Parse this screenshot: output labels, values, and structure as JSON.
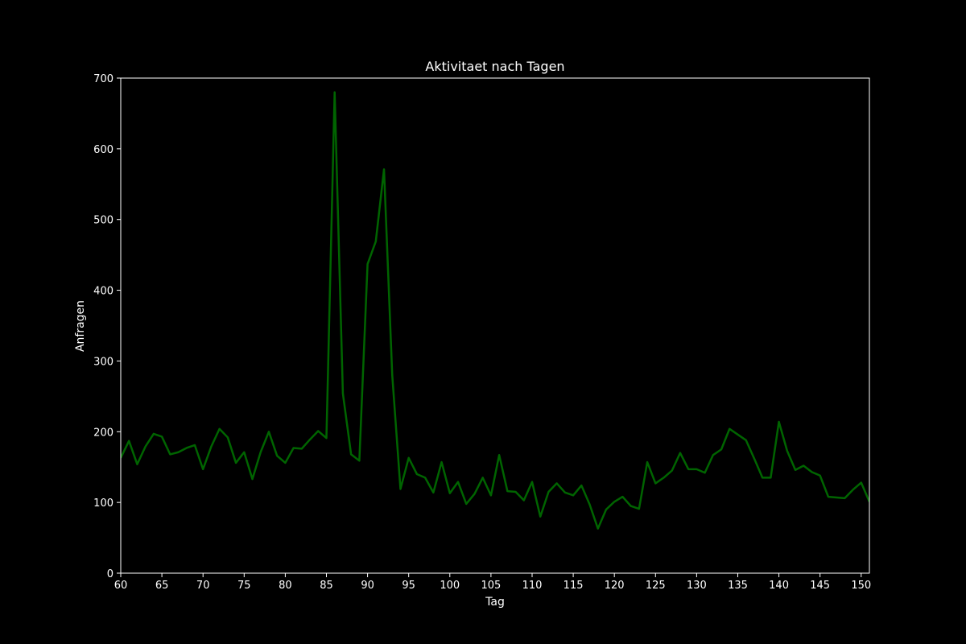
{
  "chart_data": {
    "type": "line",
    "title": "Aktivitaet nach Tagen",
    "xlabel": "Tag",
    "ylabel": "Anfragen",
    "xlim": [
      60,
      151
    ],
    "ylim": [
      0,
      700
    ],
    "xticks": [
      60,
      65,
      70,
      75,
      80,
      85,
      90,
      95,
      100,
      105,
      110,
      115,
      120,
      125,
      130,
      135,
      140,
      145,
      150
    ],
    "yticks": [
      0,
      100,
      200,
      300,
      400,
      500,
      600,
      700
    ],
    "grid": false,
    "legend": "none",
    "colors": {
      "background": "#000000",
      "axes": "#ffffff",
      "text": "#ffffff",
      "line": "#006400"
    },
    "series": [
      {
        "x": [
          60,
          61,
          62,
          63,
          64,
          65,
          66,
          67,
          68,
          69,
          70,
          71,
          72,
          73,
          74,
          75,
          76,
          77,
          78,
          79,
          80,
          81,
          82,
          83,
          84,
          85,
          86,
          87,
          88,
          89,
          90,
          91,
          92,
          93,
          94,
          95,
          96,
          97,
          98,
          99,
          100,
          101,
          102,
          103,
          104,
          105,
          106,
          107,
          108,
          109,
          110,
          111,
          112,
          113,
          114,
          115,
          116,
          117,
          118,
          119,
          120,
          121,
          122,
          123,
          124,
          125,
          126,
          127,
          128,
          129,
          130,
          131,
          132,
          133,
          134,
          135,
          136,
          137,
          138,
          139,
          140,
          141,
          142,
          143,
          144,
          145,
          146,
          147,
          148,
          149,
          150,
          151
        ],
        "y": [
          163,
          187,
          154,
          179,
          197,
          193,
          168,
          171,
          177,
          181,
          147,
          179,
          204,
          192,
          156,
          171,
          133,
          171,
          200,
          166,
          156,
          177,
          176,
          189,
          201,
          191,
          680,
          254,
          168,
          159,
          437,
          469,
          571,
          280,
          119,
          163,
          140,
          135,
          114,
          157,
          113,
          129,
          98,
          112,
          135,
          110,
          167,
          116,
          115,
          103,
          129,
          80,
          115,
          127,
          114,
          110,
          124,
          97,
          63,
          90,
          101,
          108,
          95,
          91,
          157,
          127,
          135,
          145,
          170,
          147,
          147,
          142,
          167,
          175,
          204,
          196,
          188,
          162,
          135,
          135,
          214,
          173,
          146,
          152,
          143,
          138,
          108,
          107,
          106,
          118,
          128,
          101
        ]
      }
    ]
  }
}
